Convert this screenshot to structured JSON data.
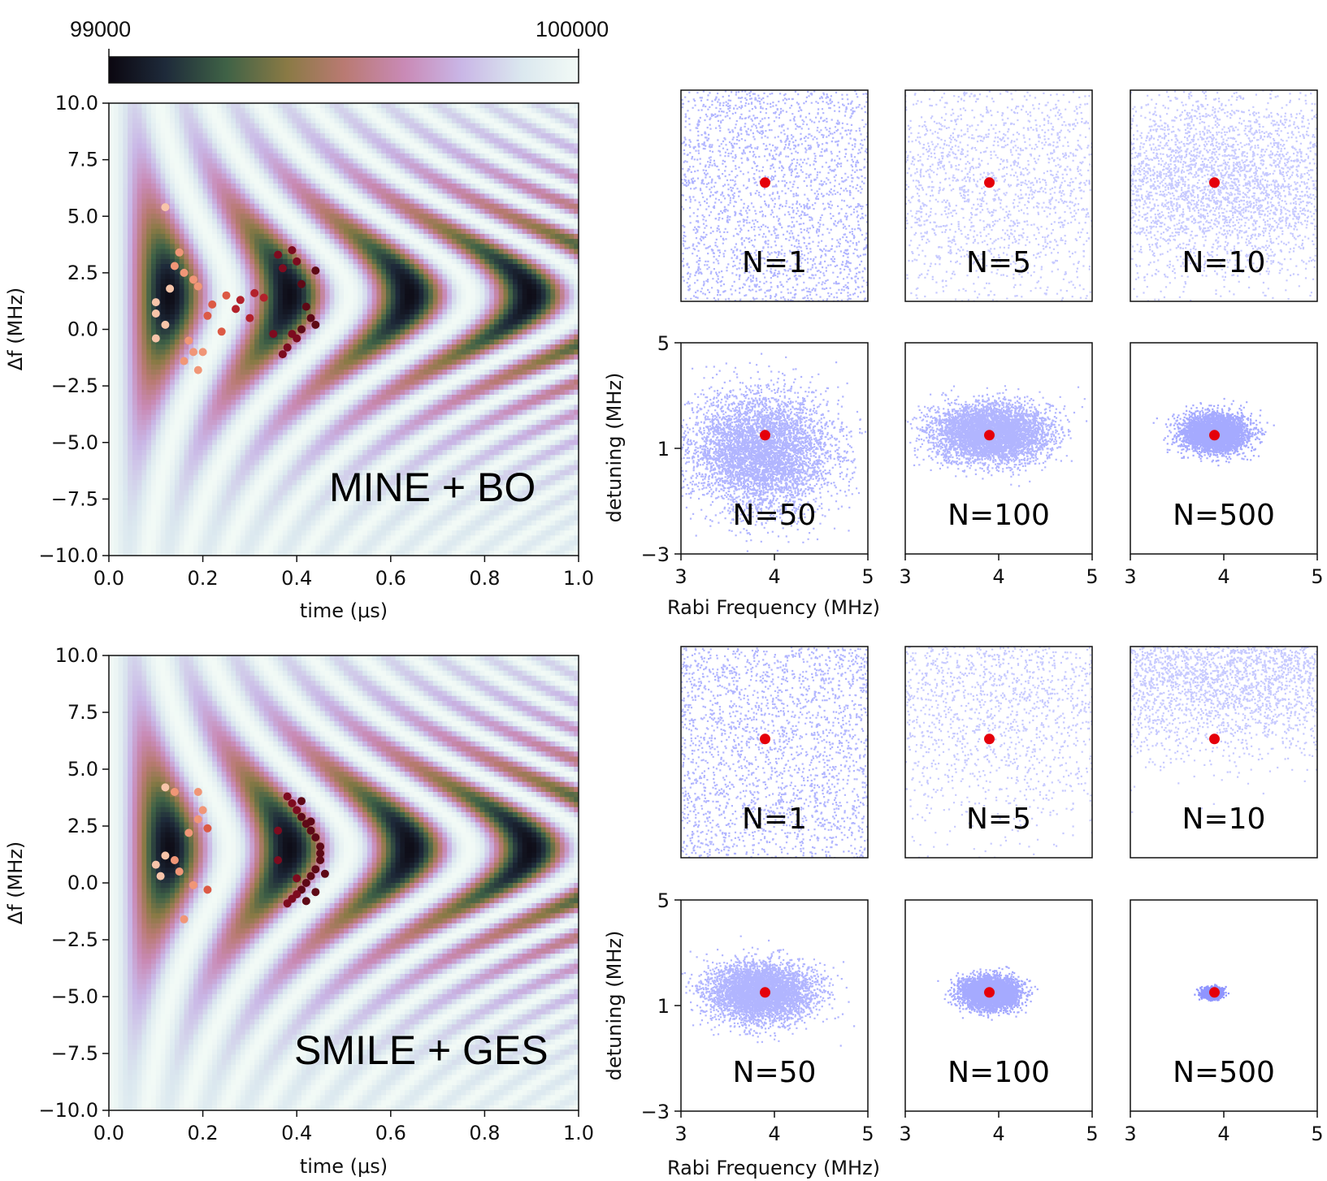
{
  "colorbar": {
    "min_label": "99000",
    "max_label": "100000"
  },
  "heatmaps": [
    {
      "method": "MINE + BO",
      "xlabel": "time (μs)",
      "ylabel": "Δf (MHz)",
      "xlim": [
        0.0,
        1.0
      ],
      "ylim": [
        -10.0,
        10.0
      ],
      "xticks": [
        "0.0",
        "0.2",
        "0.4",
        "0.6",
        "0.8",
        "1.0"
      ],
      "yticks": [
        "10.0",
        "7.5",
        "5.0",
        "2.5",
        "0.0",
        "−2.5",
        "−5.0",
        "−7.5",
        "−10.0"
      ]
    },
    {
      "method": "SMILE + GES",
      "xlabel": "time (μs)",
      "ylabel": "Δf (MHz)",
      "xlim": [
        0.0,
        1.0
      ],
      "ylim": [
        -10.0,
        10.0
      ],
      "xticks": [
        "0.0",
        "0.2",
        "0.4",
        "0.6",
        "0.8",
        "1.0"
      ],
      "yticks": [
        "10.0",
        "7.5",
        "5.0",
        "2.5",
        "0.0",
        "−2.5",
        "−5.0",
        "−7.5",
        "−10.0"
      ]
    }
  ],
  "posterior_panels": {
    "xlabel": "Rabi Frequency (MHz)",
    "ylabel": "detuning (MHz)",
    "xticks": [
      "3",
      "4",
      "5"
    ],
    "yticks": [
      "5",
      "1",
      "−3"
    ],
    "xlim": [
      3,
      5
    ],
    "ylim": [
      -3,
      5
    ],
    "true_value": {
      "rabi": 3.9,
      "detuning": 1.5
    },
    "rows": [
      {
        "panels": [
          {
            "label": "N=1",
            "spread": "uniform"
          },
          {
            "label": "N=5",
            "spread": "wide"
          },
          {
            "label": "N=10",
            "spread": "medium"
          }
        ]
      },
      {
        "panels": [
          {
            "label": "N=50",
            "spread": "1.0"
          },
          {
            "label": "N=100",
            "spread": "0.6"
          },
          {
            "label": "N=500",
            "spread": "0.4"
          }
        ]
      },
      {
        "panels": [
          {
            "label": "N=1",
            "spread": "uniform"
          },
          {
            "label": "N=5",
            "spread": "wide"
          },
          {
            "label": "N=10",
            "spread": "medium-high"
          }
        ]
      },
      {
        "panels": [
          {
            "label": "N=50",
            "spread": "0.8"
          },
          {
            "label": "N=100",
            "spread": "0.4"
          },
          {
            "label": "N=500",
            "spread": "0.15"
          }
        ]
      }
    ]
  },
  "chart_data": [
    {
      "type": "heatmap",
      "title": "MINE + BO",
      "xlabel": "time (μs)",
      "ylabel": "Δf (MHz)",
      "xlim": [
        0,
        1
      ],
      "ylim": [
        -10,
        10
      ],
      "colorbar_range": [
        99000,
        100000
      ],
      "design_points": [
        {
          "t": 0.12,
          "f": 5.4
        },
        {
          "t": 0.14,
          "f": 2.8
        },
        {
          "t": 0.13,
          "f": 1.8
        },
        {
          "t": 0.1,
          "f": 1.2
        },
        {
          "t": 0.12,
          "f": 0.2
        },
        {
          "t": 0.1,
          "f": -0.4
        },
        {
          "t": 0.1,
          "f": 0.7
        },
        {
          "t": 0.15,
          "f": 3.4
        },
        {
          "t": 0.16,
          "f": 2.5
        },
        {
          "t": 0.18,
          "f": 2.2
        },
        {
          "t": 0.19,
          "f": 1.9
        },
        {
          "t": 0.17,
          "f": -0.5
        },
        {
          "t": 0.18,
          "f": -1.0
        },
        {
          "t": 0.16,
          "f": -1.4
        },
        {
          "t": 0.19,
          "f": -1.8
        },
        {
          "t": 0.2,
          "f": -1.0
        },
        {
          "t": 0.21,
          "f": 0.6
        },
        {
          "t": 0.22,
          "f": 1.1
        },
        {
          "t": 0.24,
          "f": -0.1
        },
        {
          "t": 0.25,
          "f": 1.5
        },
        {
          "t": 0.27,
          "f": 0.9
        },
        {
          "t": 0.28,
          "f": 1.3
        },
        {
          "t": 0.3,
          "f": 0.5
        },
        {
          "t": 0.31,
          "f": 1.6
        },
        {
          "t": 0.33,
          "f": 1.4
        },
        {
          "t": 0.35,
          "f": -0.2
        },
        {
          "t": 0.36,
          "f": 3.3
        },
        {
          "t": 0.37,
          "f": 2.7
        },
        {
          "t": 0.39,
          "f": 3.5
        },
        {
          "t": 0.4,
          "f": 3.0
        },
        {
          "t": 0.41,
          "f": 2.0
        },
        {
          "t": 0.42,
          "f": 1.0
        },
        {
          "t": 0.43,
          "f": 0.5
        },
        {
          "t": 0.4,
          "f": -0.4
        },
        {
          "t": 0.38,
          "f": -0.8
        },
        {
          "t": 0.37,
          "f": -1.1
        },
        {
          "t": 0.44,
          "f": 0.2
        },
        {
          "t": 0.44,
          "f": 2.6
        },
        {
          "t": 0.39,
          "f": -0.2
        },
        {
          "t": 0.41,
          "f": 0.0
        }
      ]
    },
    {
      "type": "heatmap",
      "title": "SMILE + GES",
      "xlabel": "time (μs)",
      "ylabel": "Δf (MHz)",
      "xlim": [
        0,
        1
      ],
      "ylim": [
        -10,
        10
      ],
      "colorbar_range": [
        99000,
        100000
      ],
      "design_points": [
        {
          "t": 0.12,
          "f": 4.2
        },
        {
          "t": 0.14,
          "f": 4.0
        },
        {
          "t": 0.19,
          "f": 4.0
        },
        {
          "t": 0.2,
          "f": 3.2
        },
        {
          "t": 0.19,
          "f": 2.8
        },
        {
          "t": 0.17,
          "f": 2.2
        },
        {
          "t": 0.21,
          "f": 2.4
        },
        {
          "t": 0.12,
          "f": 1.2
        },
        {
          "t": 0.1,
          "f": 0.8
        },
        {
          "t": 0.14,
          "f": 1.0
        },
        {
          "t": 0.15,
          "f": 0.5
        },
        {
          "t": 0.18,
          "f": -0.1
        },
        {
          "t": 0.21,
          "f": -0.3
        },
        {
          "t": 0.16,
          "f": -1.6
        },
        {
          "t": 0.11,
          "f": 0.3
        },
        {
          "t": 0.36,
          "f": 2.3
        },
        {
          "t": 0.36,
          "f": 1.0
        },
        {
          "t": 0.38,
          "f": 3.8
        },
        {
          "t": 0.39,
          "f": 3.5
        },
        {
          "t": 0.4,
          "f": 3.2
        },
        {
          "t": 0.41,
          "f": 2.9
        },
        {
          "t": 0.42,
          "f": 2.6
        },
        {
          "t": 0.43,
          "f": 2.3
        },
        {
          "t": 0.44,
          "f": 2.0
        },
        {
          "t": 0.45,
          "f": 1.6
        },
        {
          "t": 0.45,
          "f": 1.3
        },
        {
          "t": 0.45,
          "f": 1.0
        },
        {
          "t": 0.44,
          "f": 0.6
        },
        {
          "t": 0.43,
          "f": 0.3
        },
        {
          "t": 0.42,
          "f": 0.0
        },
        {
          "t": 0.41,
          "f": -0.3
        },
        {
          "t": 0.4,
          "f": -0.5
        },
        {
          "t": 0.39,
          "f": -0.7
        },
        {
          "t": 0.38,
          "f": -0.9
        },
        {
          "t": 0.41,
          "f": 3.6
        },
        {
          "t": 0.43,
          "f": 2.7
        },
        {
          "t": 0.44,
          "f": -0.4
        },
        {
          "t": 0.46,
          "f": 0.4
        },
        {
          "t": 0.42,
          "f": -0.8
        },
        {
          "t": 0.4,
          "f": 0.2
        }
      ]
    }
  ]
}
